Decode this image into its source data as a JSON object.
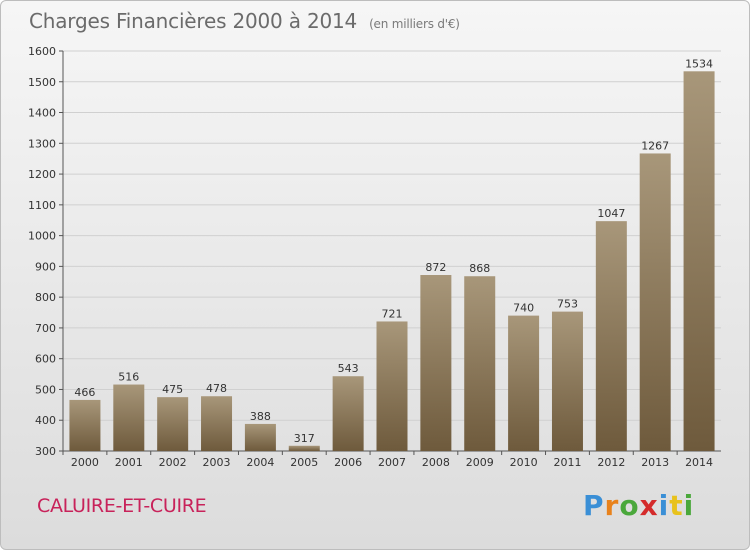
{
  "header": {
    "title": "Charges Financières 2000 à 2014",
    "subtitle": "(en milliers d'€)"
  },
  "footer": {
    "city": "CALUIRE-ET-CUIRE",
    "logo": [
      "P",
      "r",
      "o",
      "x",
      "i",
      "t",
      "i"
    ],
    "logo_colors": [
      "#3a8fd6",
      "#e8821c",
      "#4aa83b",
      "#d42b2b",
      "#3a8fd6",
      "#e8c21c",
      "#4aa83b"
    ]
  },
  "colors": {
    "bar_top": "#a8977a",
    "bar_bottom": "#6e5a3c",
    "grid": "#d0d0d0",
    "axis_text": "#333333"
  },
  "chart_data": {
    "type": "bar",
    "categories": [
      "2000",
      "2001",
      "2002",
      "2003",
      "2004",
      "2005",
      "2006",
      "2007",
      "2008",
      "2009",
      "2010",
      "2011",
      "2012",
      "2013",
      "2014"
    ],
    "values": [
      466,
      516,
      475,
      478,
      388,
      317,
      543,
      721,
      872,
      868,
      740,
      753,
      1047,
      1267,
      1534
    ],
    "ylim": [
      300,
      1600
    ],
    "yticks": [
      300,
      400,
      500,
      600,
      700,
      800,
      900,
      1000,
      1100,
      1200,
      1300,
      1400,
      1500,
      1600
    ],
    "grid": true
  }
}
